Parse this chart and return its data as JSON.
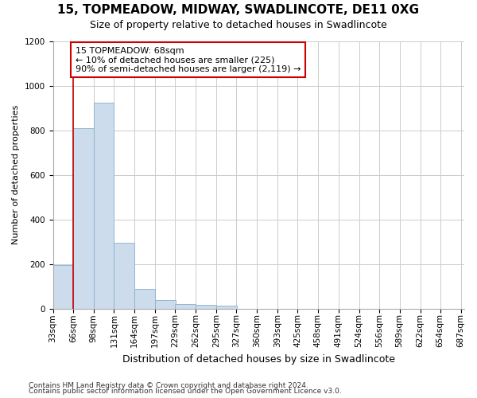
{
  "title": "15, TOPMEADOW, MIDWAY, SWADLINCOTE, DE11 0XG",
  "subtitle": "Size of property relative to detached houses in Swadlincote",
  "xlabel": "Distribution of detached houses by size in Swadlincote",
  "ylabel": "Number of detached properties",
  "bar_color": "#ccdcec",
  "bar_edge_color": "#8ab0cc",
  "bin_starts": [
    33,
    66,
    98,
    131,
    164,
    197,
    229,
    262,
    295,
    327,
    360,
    393,
    425,
    458,
    491,
    524,
    556,
    589,
    622,
    654
  ],
  "bin_labels": [
    "33sqm",
    "66sqm",
    "98sqm",
    "131sqm",
    "164sqm",
    "197sqm",
    "229sqm",
    "262sqm",
    "295sqm",
    "327sqm",
    "360sqm",
    "393sqm",
    "425sqm",
    "458sqm",
    "491sqm",
    "524sqm",
    "556sqm",
    "589sqm",
    "622sqm",
    "654sqm",
    "687sqm"
  ],
  "bar_heights": [
    195,
    810,
    925,
    295,
    88,
    38,
    20,
    18,
    13,
    0,
    0,
    0,
    0,
    0,
    0,
    0,
    0,
    0,
    0,
    0
  ],
  "bin_width": 33,
  "ylim": [
    0,
    1200
  ],
  "yticks": [
    0,
    200,
    400,
    600,
    800,
    1000,
    1200
  ],
  "property_line_x": 66,
  "annotation_title": "15 TOPMEADOW: 68sqm",
  "annotation_line1": "← 10% of detached houses are smaller (225)",
  "annotation_line2": "90% of semi-detached houses are larger (2,119) →",
  "red_line_color": "#cc0000",
  "annotation_box_color": "#ffffff",
  "annotation_box_edge": "#cc0000",
  "footer1": "Contains HM Land Registry data © Crown copyright and database right 2024.",
  "footer2": "Contains public sector information licensed under the Open Government Licence v3.0.",
  "background_color": "#ffffff",
  "grid_color": "#cccccc",
  "title_fontsize": 11,
  "subtitle_fontsize": 9,
  "ylabel_fontsize": 8,
  "xlabel_fontsize": 9,
  "tick_fontsize": 7.5,
  "annot_fontsize": 8,
  "footer_fontsize": 6.5
}
